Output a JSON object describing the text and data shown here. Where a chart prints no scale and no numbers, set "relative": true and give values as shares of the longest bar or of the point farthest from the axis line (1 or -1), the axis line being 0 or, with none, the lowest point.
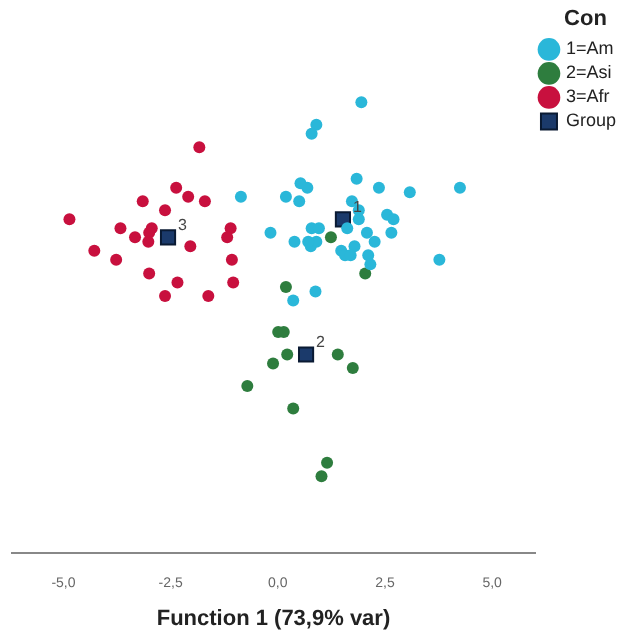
{
  "chart_data": {
    "type": "scatter",
    "xlabel": "Function 1 (73,9% var)",
    "relative": true,
    "legend_title": "Con",
    "xlim": [
      -6.2,
      6
    ],
    "xticks": [
      {
        "value": -5,
        "label": "-5,0"
      },
      {
        "value": -2.5,
        "label": "-2,5"
      },
      {
        "value": 0,
        "label": "0,0"
      },
      {
        "value": 2.5,
        "label": "2,5"
      },
      {
        "value": 5,
        "label": "5,0"
      }
    ],
    "grid": false,
    "legend": "top right",
    "tick_labels": "x",
    "series": [
      {
        "name": "1=Am",
        "color": "#2ab7d9",
        "marker": "circle",
        "x": [
          1.95,
          0.9,
          0.79,
          -0.86,
          0.53,
          0.69,
          0.19,
          0.5,
          1.84,
          2.36,
          3.08,
          4.25,
          1.73,
          1.89,
          1.89,
          2.55,
          2.7,
          2.65,
          0.79,
          0.96,
          -0.17,
          0.39,
          0.77,
          0.9,
          1.62,
          2.08,
          2.26,
          1.79,
          1.48,
          1.57,
          1.7,
          2.11,
          2.16,
          3.77,
          0.88,
          0.36,
          0.71
        ],
        "values": [
          1.0,
          0.95,
          0.93,
          0.79,
          0.82,
          0.81,
          0.79,
          0.78,
          0.83,
          0.81,
          0.8,
          0.81,
          0.78,
          0.76,
          0.74,
          0.75,
          0.74,
          0.71,
          0.72,
          0.72,
          0.71,
          0.69,
          0.68,
          0.69,
          0.72,
          0.71,
          0.69,
          0.68,
          0.67,
          0.66,
          0.66,
          0.66,
          0.64,
          0.65,
          0.58,
          0.56,
          0.69
        ]
      },
      {
        "name": "2=Asi",
        "color": "#2e7d3e",
        "marker": "circle",
        "x": [
          1.24,
          2.04,
          0.19,
          0.01,
          0.14,
          0.22,
          1.4,
          1.75,
          -0.11,
          -0.71,
          0.36,
          1.15,
          1.02
        ],
        "values": [
          0.7,
          0.62,
          0.59,
          0.49,
          0.49,
          0.44,
          0.44,
          0.41,
          0.42,
          0.37,
          0.32,
          0.2,
          0.17
        ]
      },
      {
        "name": "3=Afr",
        "color": "#c8103e",
        "marker": "circle",
        "x": [
          -1.83,
          -2.37,
          -2.09,
          -1.7,
          -3.15,
          -2.63,
          -4.86,
          -3.67,
          -2.94,
          -3.33,
          -3.0,
          -3.02,
          -1.1,
          -1.18,
          -2.04,
          -4.28,
          -3.77,
          -1.07,
          -3.0,
          -2.34,
          -1.04,
          -2.63,
          -1.62
        ],
        "values": [
          0.9,
          0.81,
          0.79,
          0.78,
          0.78,
          0.76,
          0.74,
          0.72,
          0.72,
          0.7,
          0.71,
          0.69,
          0.72,
          0.7,
          0.68,
          0.67,
          0.65,
          0.65,
          0.62,
          0.6,
          0.6,
          0.57,
          0.57
        ]
      },
      {
        "name": "Group",
        "color": "#1b3a6b",
        "marker": "square",
        "x": [
          1.52,
          0.66,
          -2.56
        ],
        "values": [
          0.74,
          0.44,
          0.7
        ]
      }
    ],
    "annotations": [
      {
        "text": "1",
        "x": 1.52,
        "y": 0.74
      },
      {
        "text": "2",
        "x": 0.66,
        "y": 0.44
      },
      {
        "text": "3",
        "x": -2.56,
        "y": 0.7
      }
    ]
  }
}
